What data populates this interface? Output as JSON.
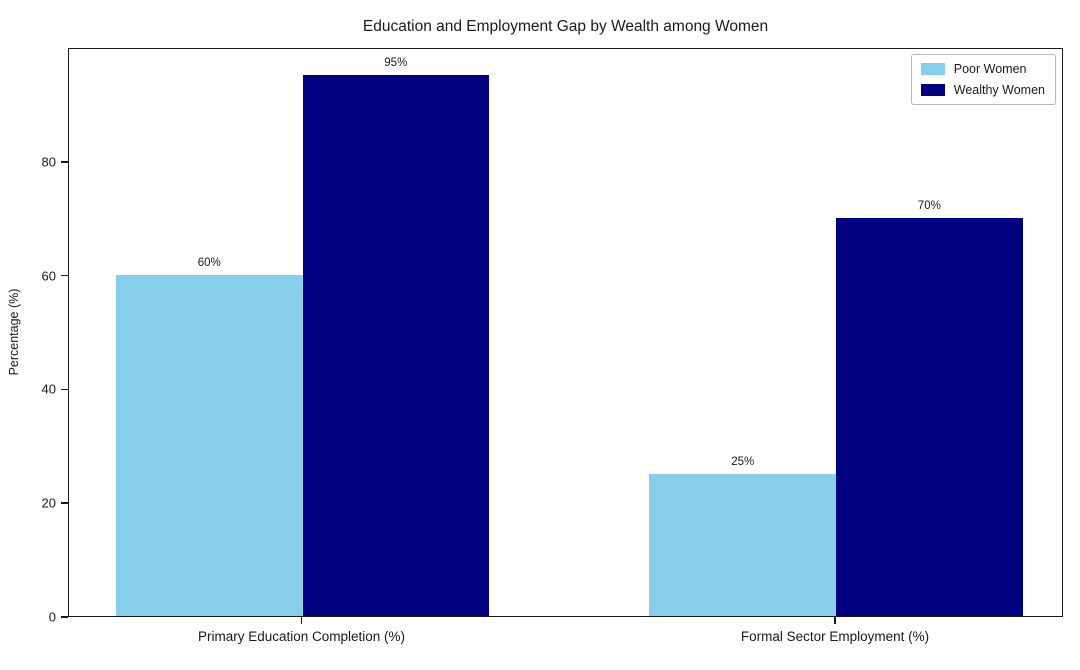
{
  "chart_data": {
    "type": "bar",
    "title": "Education and Employment Gap by Wealth among Women",
    "ylabel": "Percentage (%)",
    "xlabel": "",
    "categories": [
      "Primary Education Completion (%)",
      "Formal Sector Employment (%)"
    ],
    "series": [
      {
        "name": "Poor Women",
        "color": "#87CEEB",
        "values": [
          60,
          25
        ],
        "labels": [
          "60%",
          "25%"
        ]
      },
      {
        "name": "Wealthy Women",
        "color": "#000080",
        "values": [
          95,
          70
        ],
        "labels": [
          "95%",
          "70%"
        ]
      }
    ],
    "yticks": [
      0,
      20,
      40,
      60,
      80
    ],
    "ylim": [
      0,
      100
    ],
    "grid": false,
    "legend_position": "upper right",
    "background_color": "#ffffff",
    "axis_color": "#1a1a1a"
  }
}
